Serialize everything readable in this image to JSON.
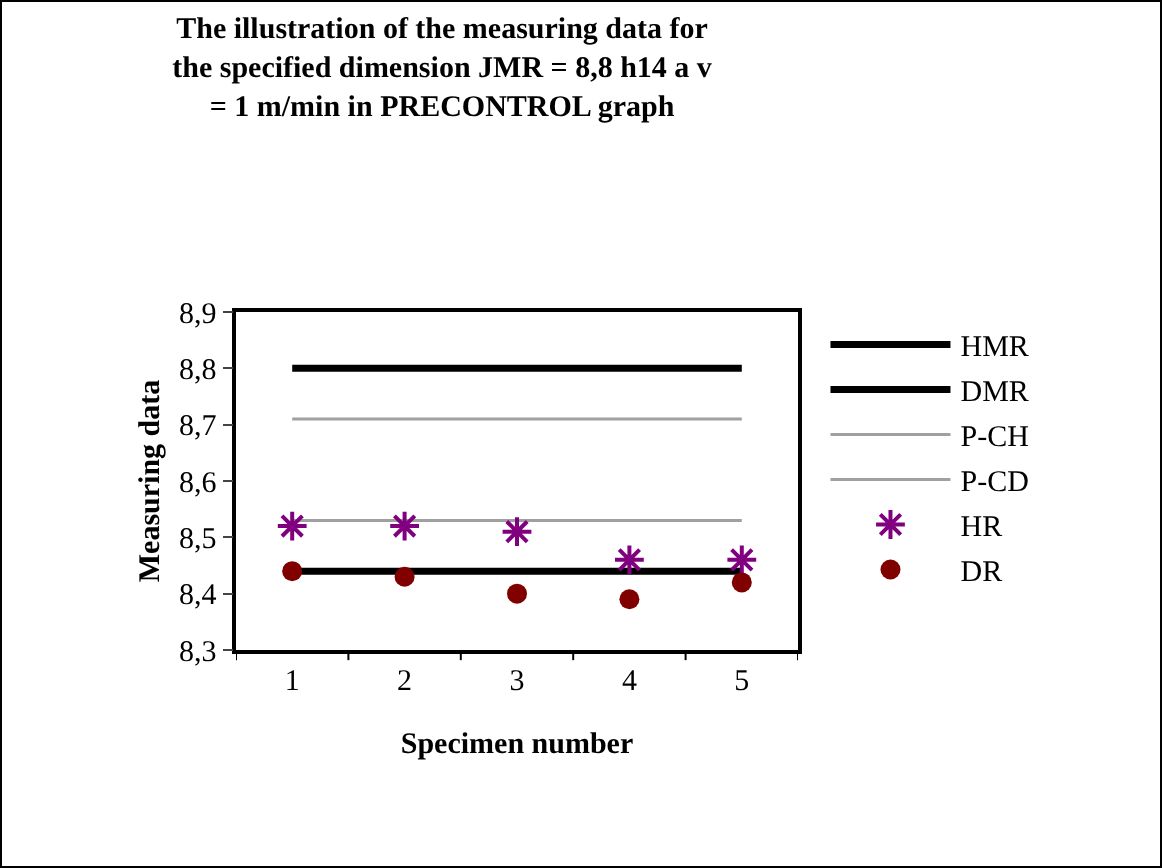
{
  "chart_data": {
    "type": "line",
    "title": "The illustration of the measuring data for the specified dimension JMR = 8,8 h14 a v = 1 m/min in PRECONTROL graph",
    "xlabel": "Specimen number",
    "ylabel": "Measuring data",
    "categories": [
      "1",
      "2",
      "3",
      "4",
      "5"
    ],
    "ylim": [
      8.3,
      8.9
    ],
    "yticks": [
      {
        "value": 8.3,
        "label": "8,3"
      },
      {
        "value": 8.4,
        "label": "8,4"
      },
      {
        "value": 8.5,
        "label": "8,5"
      },
      {
        "value": 8.6,
        "label": "8,6"
      },
      {
        "value": 8.7,
        "label": "8,7"
      },
      {
        "value": 8.8,
        "label": "8,8"
      },
      {
        "value": 8.9,
        "label": "8,9"
      }
    ],
    "grid": false,
    "legend": "right",
    "series": [
      {
        "name": "HMR",
        "type": "line",
        "color": "#000000",
        "values": [
          8.8,
          8.8,
          8.8,
          8.8,
          8.8
        ]
      },
      {
        "name": "DMR",
        "type": "line",
        "color": "#000000",
        "values": [
          8.44,
          8.44,
          8.44,
          8.44,
          8.44
        ]
      },
      {
        "name": "P-CH",
        "type": "line",
        "color": "#a0a0a0",
        "values": [
          8.71,
          8.71,
          8.71,
          8.71,
          8.71
        ]
      },
      {
        "name": "P-CD",
        "type": "line",
        "color": "#a0a0a0",
        "values": [
          8.53,
          8.53,
          8.53,
          8.53,
          8.53
        ]
      },
      {
        "name": "HR",
        "type": "scatter",
        "marker": "cross",
        "color": "#800080",
        "values": [
          8.52,
          8.52,
          8.51,
          8.46,
          8.46
        ]
      },
      {
        "name": "DR",
        "type": "scatter",
        "marker": "circle",
        "color": "#800000",
        "values": [
          8.44,
          8.43,
          8.4,
          8.39,
          8.42
        ]
      }
    ]
  }
}
